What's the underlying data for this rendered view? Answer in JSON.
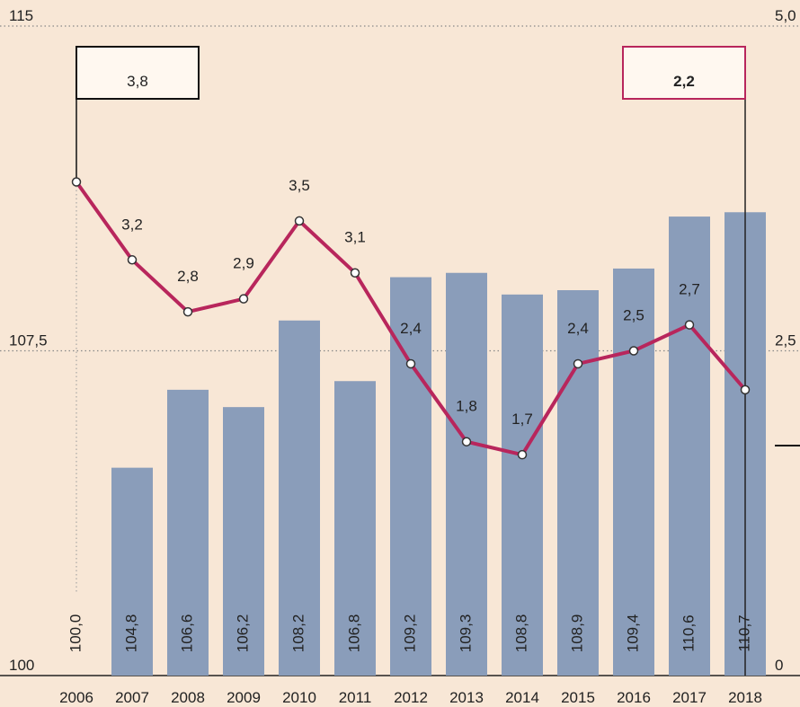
{
  "chart_data": {
    "type": "combo",
    "categories": [
      "2006",
      "2007",
      "2008",
      "2009",
      "2010",
      "2011",
      "2012",
      "2013",
      "2014",
      "2015",
      "2016",
      "2017",
      "2018"
    ],
    "series": [
      {
        "type": "bar",
        "color": "#8a9dba",
        "values": [
          100.0,
          104.8,
          106.6,
          106.2,
          108.2,
          106.8,
          109.2,
          109.3,
          108.8,
          108.9,
          109.4,
          110.6,
          110.7
        ],
        "value_labels": [
          "100,0",
          "104,8",
          "106,6",
          "106,2",
          "108,2",
          "106,8",
          "109,2",
          "109,3",
          "108,8",
          "108,9",
          "109,4",
          "110,6",
          "110,7"
        ]
      },
      {
        "type": "line",
        "axis": "y2",
        "color": "#b8265c",
        "values": [
          3.8,
          3.2,
          2.8,
          2.9,
          3.5,
          3.1,
          2.4,
          1.8,
          1.7,
          2.4,
          2.5,
          2.7,
          2.2
        ],
        "value_labels": [
          "3,8",
          "3,2",
          "2,8",
          "2,9",
          "3,5",
          "3,1",
          "2,4",
          "1,8",
          "1,7",
          "2,4",
          "2,5",
          "2,7",
          "2,2"
        ]
      }
    ],
    "ylim": [
      100,
      115
    ],
    "yticks": [
      100,
      {
        "value": 107.5,
        "label": "107,5"
      },
      115
    ],
    "y2lim": [
      0,
      5
    ],
    "y2ticks": [
      0,
      {
        "value": 2.5,
        "label": "2,5"
      },
      {
        "value": 5,
        "label": "5,0"
      }
    ],
    "grid": true
  }
}
